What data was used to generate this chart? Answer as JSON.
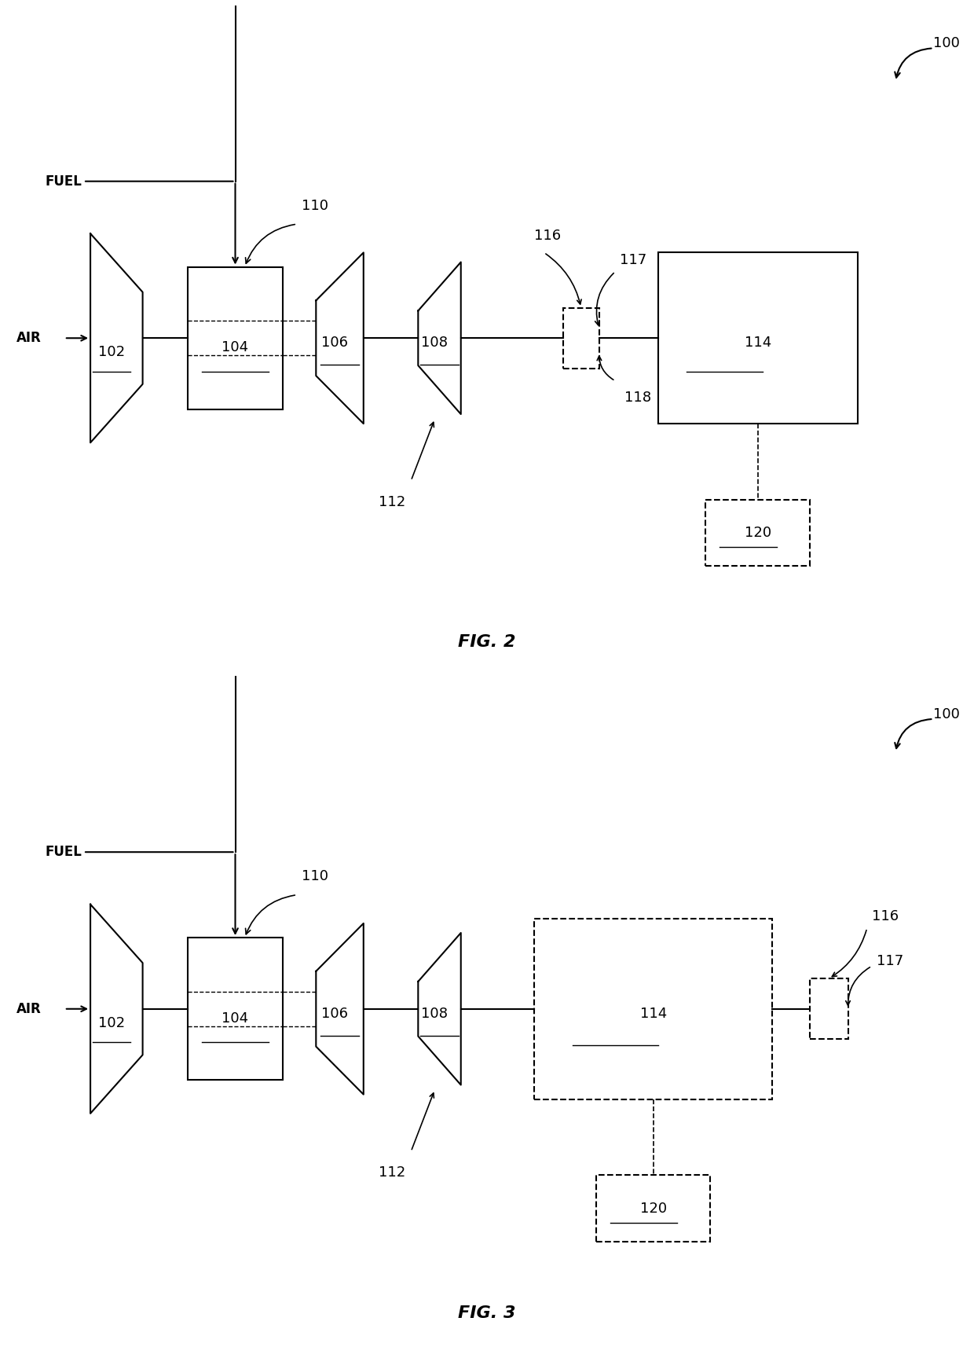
{
  "bg_color": "#ffffff",
  "line_color": "#000000",
  "fig2_caption": "FIG. 2",
  "fig3_caption": "FIG. 3",
  "label_100": "100",
  "label_102": "102",
  "label_104": "104",
  "label_106": "106",
  "label_108": "108",
  "label_110": "110",
  "label_112": "112",
  "label_114": "114",
  "label_116": "116",
  "label_117": "117",
  "label_118": "118",
  "label_120": "120",
  "label_fuel": "FUEL",
  "label_air": "AIR",
  "font_size_labels": 12,
  "font_size_caption": 16,
  "font_size_numbers": 13
}
